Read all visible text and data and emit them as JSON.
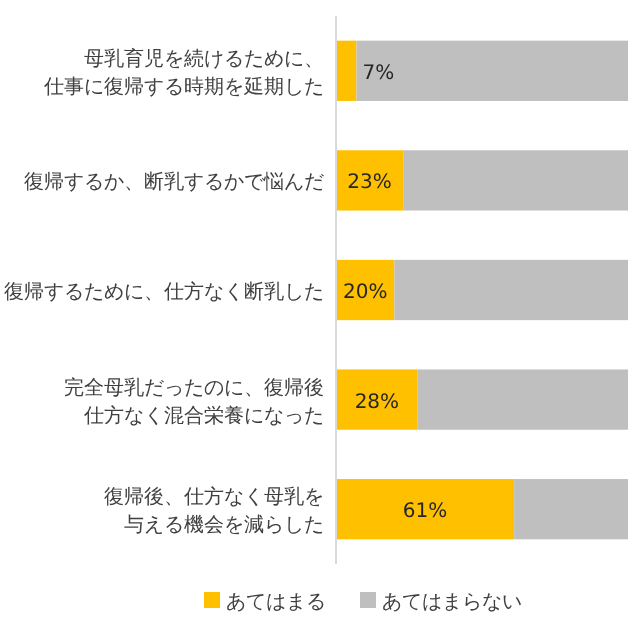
{
  "chart_data": {
    "type": "bar",
    "orientation": "horizontal",
    "stacked": true,
    "categories": [
      "母乳育児を続けるために、仕事に復帰する時期を延期した",
      "復帰するか、断乳するかで悩んだ",
      "復帰するために、仕方なく断乳した",
      "完全母乳だったのに、復帰後仕方なく混合栄養になった",
      "復帰後、仕方なく母乳を与える機会を減らした"
    ],
    "series": [
      {
        "name": "あてはまる",
        "color": "#ffc000",
        "values": [
          7,
          23,
          20,
          28,
          61
        ],
        "value_labels": [
          "7%",
          "23%",
          "20%",
          "28%",
          "61%"
        ]
      },
      {
        "name": "あてはまらない",
        "color": "#bfbfbf",
        "values": [
          93,
          77,
          80,
          72,
          39
        ]
      }
    ],
    "xlim": [
      0,
      100
    ],
    "legend": "bottom"
  }
}
